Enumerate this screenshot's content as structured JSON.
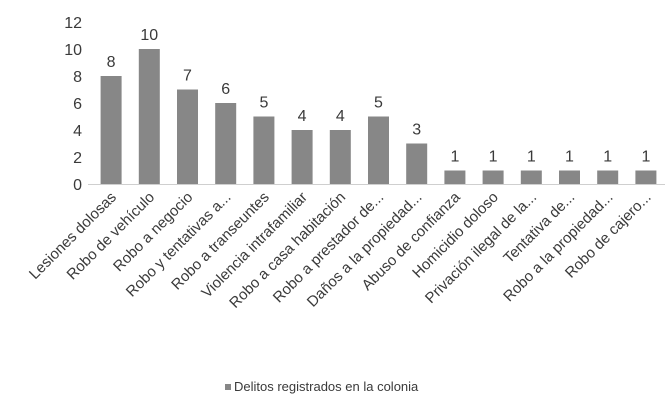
{
  "chart_data": {
    "type": "bar",
    "categories": [
      "Lesiones dolosas",
      "Robo de vehículo",
      "Robo a negocio",
      "Robo y tentativas a...",
      "Robo a transeuntes",
      "Violencia intrafamiliar",
      "Robo a casa habitación",
      "Robo a prestador de...",
      "Daños a la propiedad...",
      "Abuso de confianza",
      "Homicidio doloso",
      "Privación ilegal de la...",
      "Tentativa de...",
      "Robo a la propiedad...",
      "Robo de cajero..."
    ],
    "series": [
      {
        "name": "Delitos registrados en la colonia",
        "values": [
          8,
          10,
          7,
          6,
          5,
          4,
          4,
          5,
          3,
          1,
          1,
          1,
          1,
          1,
          1
        ]
      }
    ],
    "value_labels": [
      "8",
      "10",
      "7",
      "6",
      "5",
      "4",
      "4",
      "5",
      "3",
      "1",
      "1",
      "1",
      "1",
      "1",
      "1"
    ],
    "y_ticks": [
      "0",
      "2",
      "4",
      "6",
      "8",
      "10",
      "12"
    ],
    "ylim": [
      0,
      12
    ],
    "title": "",
    "xlabel": "",
    "ylabel": "",
    "grid": false,
    "legend": "bottom-center",
    "bar_color": "#878787",
    "axis_color": "#cfcfcf"
  }
}
